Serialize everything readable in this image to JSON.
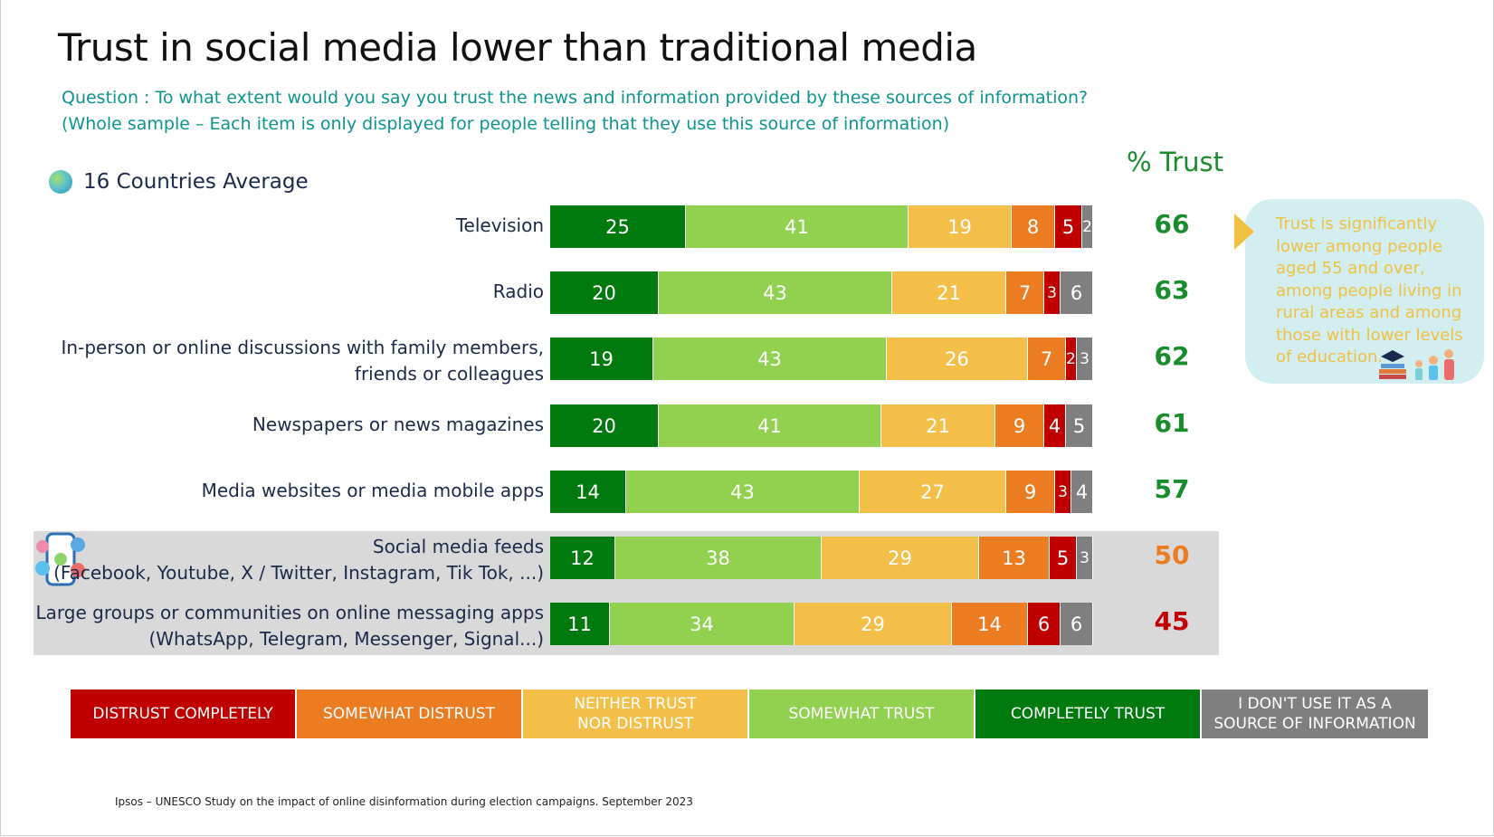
{
  "title": "Trust in social media lower than traditional media",
  "question_line1": "Question : To what extent would you say you trust the news and information provided by these sources of information?",
  "question_line2": "(Whole sample – Each item is only displayed for people telling that they use this source of information)",
  "subtitle": "16 Countries Average",
  "trust_header": "% Trust",
  "callout": "Trust is significantly lower among people aged 55 and over, among people living in rural areas and among those with lower levels of education.",
  "footnote": "Ipsos – UNESCO Study on the impact of online disinformation during election campaigns. September 2023",
  "colors": {
    "completely_trust": "#007a0e",
    "somewhat_trust": "#92d050",
    "neither": "#f3bf49",
    "somewhat_distrust": "#ec7c21",
    "distrust_completely": "#c00000",
    "dont_use": "#7f7f7f",
    "trust_green": "#198d2c",
    "trust_orange": "#ec7c21",
    "trust_red": "#c00000"
  },
  "legend": [
    {
      "label": "DISTRUST COMPLETELY",
      "color": "#c00000"
    },
    {
      "label": "SOMEWHAT DISTRUST",
      "color": "#ec7c21"
    },
    {
      "label": "NEITHER TRUST NOR DISTRUST",
      "color": "#f3bf49"
    },
    {
      "label": "SOMEWHAT TRUST",
      "color": "#92d050"
    },
    {
      "label": "COMPLETELY TRUST",
      "color": "#007a0e"
    },
    {
      "label": "I DON'T USE IT AS A SOURCE OF INFORMATION",
      "color": "#7f7f7f"
    }
  ],
  "chart_data": {
    "type": "bar",
    "orientation": "horizontal-stacked",
    "title": "Trust in social media lower than traditional media",
    "subtitle": "16 Countries Average",
    "categories": [
      "Television",
      "Radio",
      "In-person or online discussions with family members, friends or colleagues",
      "Newspapers or news magazines",
      "Media websites or media mobile apps",
      "Social media feeds (Facebook, Youtube, X / Twitter, Instagram, Tik Tok, ...)",
      "Large groups or communities on online messaging apps (WhatsApp, Telegram, Messenger, Signal...)"
    ],
    "category_lines": [
      [
        "Television"
      ],
      [
        "Radio"
      ],
      [
        "In-person or online discussions with family members,",
        "friends or colleagues"
      ],
      [
        "Newspapers or news magazines"
      ],
      [
        "Media websites or media mobile apps"
      ],
      [
        "Social media feeds",
        "(Facebook, Youtube, X / Twitter, Instagram, Tik Tok, ...)"
      ],
      [
        "Large groups or communities on online messaging apps",
        "(WhatsApp, Telegram, Messenger, Signal...)"
      ]
    ],
    "series": [
      {
        "name": "COMPLETELY TRUST",
        "color": "#007a0e",
        "values": [
          25,
          20,
          19,
          20,
          14,
          12,
          11
        ]
      },
      {
        "name": "SOMEWHAT TRUST",
        "color": "#92d050",
        "values": [
          41,
          43,
          43,
          41,
          43,
          38,
          34
        ]
      },
      {
        "name": "NEITHER TRUST NOR DISTRUST",
        "color": "#f3bf49",
        "values": [
          19,
          21,
          26,
          21,
          27,
          29,
          29
        ]
      },
      {
        "name": "SOMEWHAT DISTRUST",
        "color": "#ec7c21",
        "values": [
          8,
          7,
          7,
          9,
          9,
          13,
          14
        ]
      },
      {
        "name": "DISTRUST COMPLETELY",
        "color": "#c00000",
        "values": [
          5,
          3,
          2,
          4,
          3,
          5,
          6
        ]
      },
      {
        "name": "I DON'T USE IT AS A SOURCE OF INFORMATION",
        "color": "#7f7f7f",
        "values": [
          2,
          6,
          3,
          5,
          4,
          3,
          6
        ]
      }
    ],
    "trust_total": [
      66,
      63,
      62,
      61,
      57,
      50,
      45
    ],
    "trust_colors": [
      "#198d2c",
      "#198d2c",
      "#198d2c",
      "#198d2c",
      "#198d2c",
      "#ec7c21",
      "#c00000"
    ],
    "highlighted_categories": [
      5,
      6
    ],
    "xlim": [
      0,
      100
    ],
    "legend_position": "bottom"
  }
}
